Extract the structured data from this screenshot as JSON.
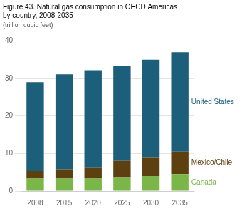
{
  "chart_data": {
    "type": "bar",
    "stacked": true,
    "title": [
      "Figure 43. Natural gas consumption in OECD Americas",
      "by country, 2008-2035"
    ],
    "subtitle": "(trillion cubic feet)",
    "categories": [
      "2008",
      "2015",
      "2020",
      "2025",
      "2030",
      "2035"
    ],
    "series": [
      {
        "name": "Canada",
        "color": "#7ab648",
        "values": [
          3.3,
          3.3,
          3.3,
          3.5,
          4.0,
          4.5
        ]
      },
      {
        "name": "Mexico/Chile",
        "color": "#5c4010",
        "values": [
          2.0,
          2.5,
          3.0,
          4.5,
          5.0,
          6.0
        ]
      },
      {
        "name": "United States",
        "color": "#1b5f7a",
        "values": [
          23.7,
          25.3,
          25.9,
          25.3,
          26.0,
          26.5
        ]
      }
    ],
    "ylim": [
      0,
      42
    ],
    "yticks": [
      0,
      10,
      20,
      30,
      40
    ],
    "grid": true
  }
}
